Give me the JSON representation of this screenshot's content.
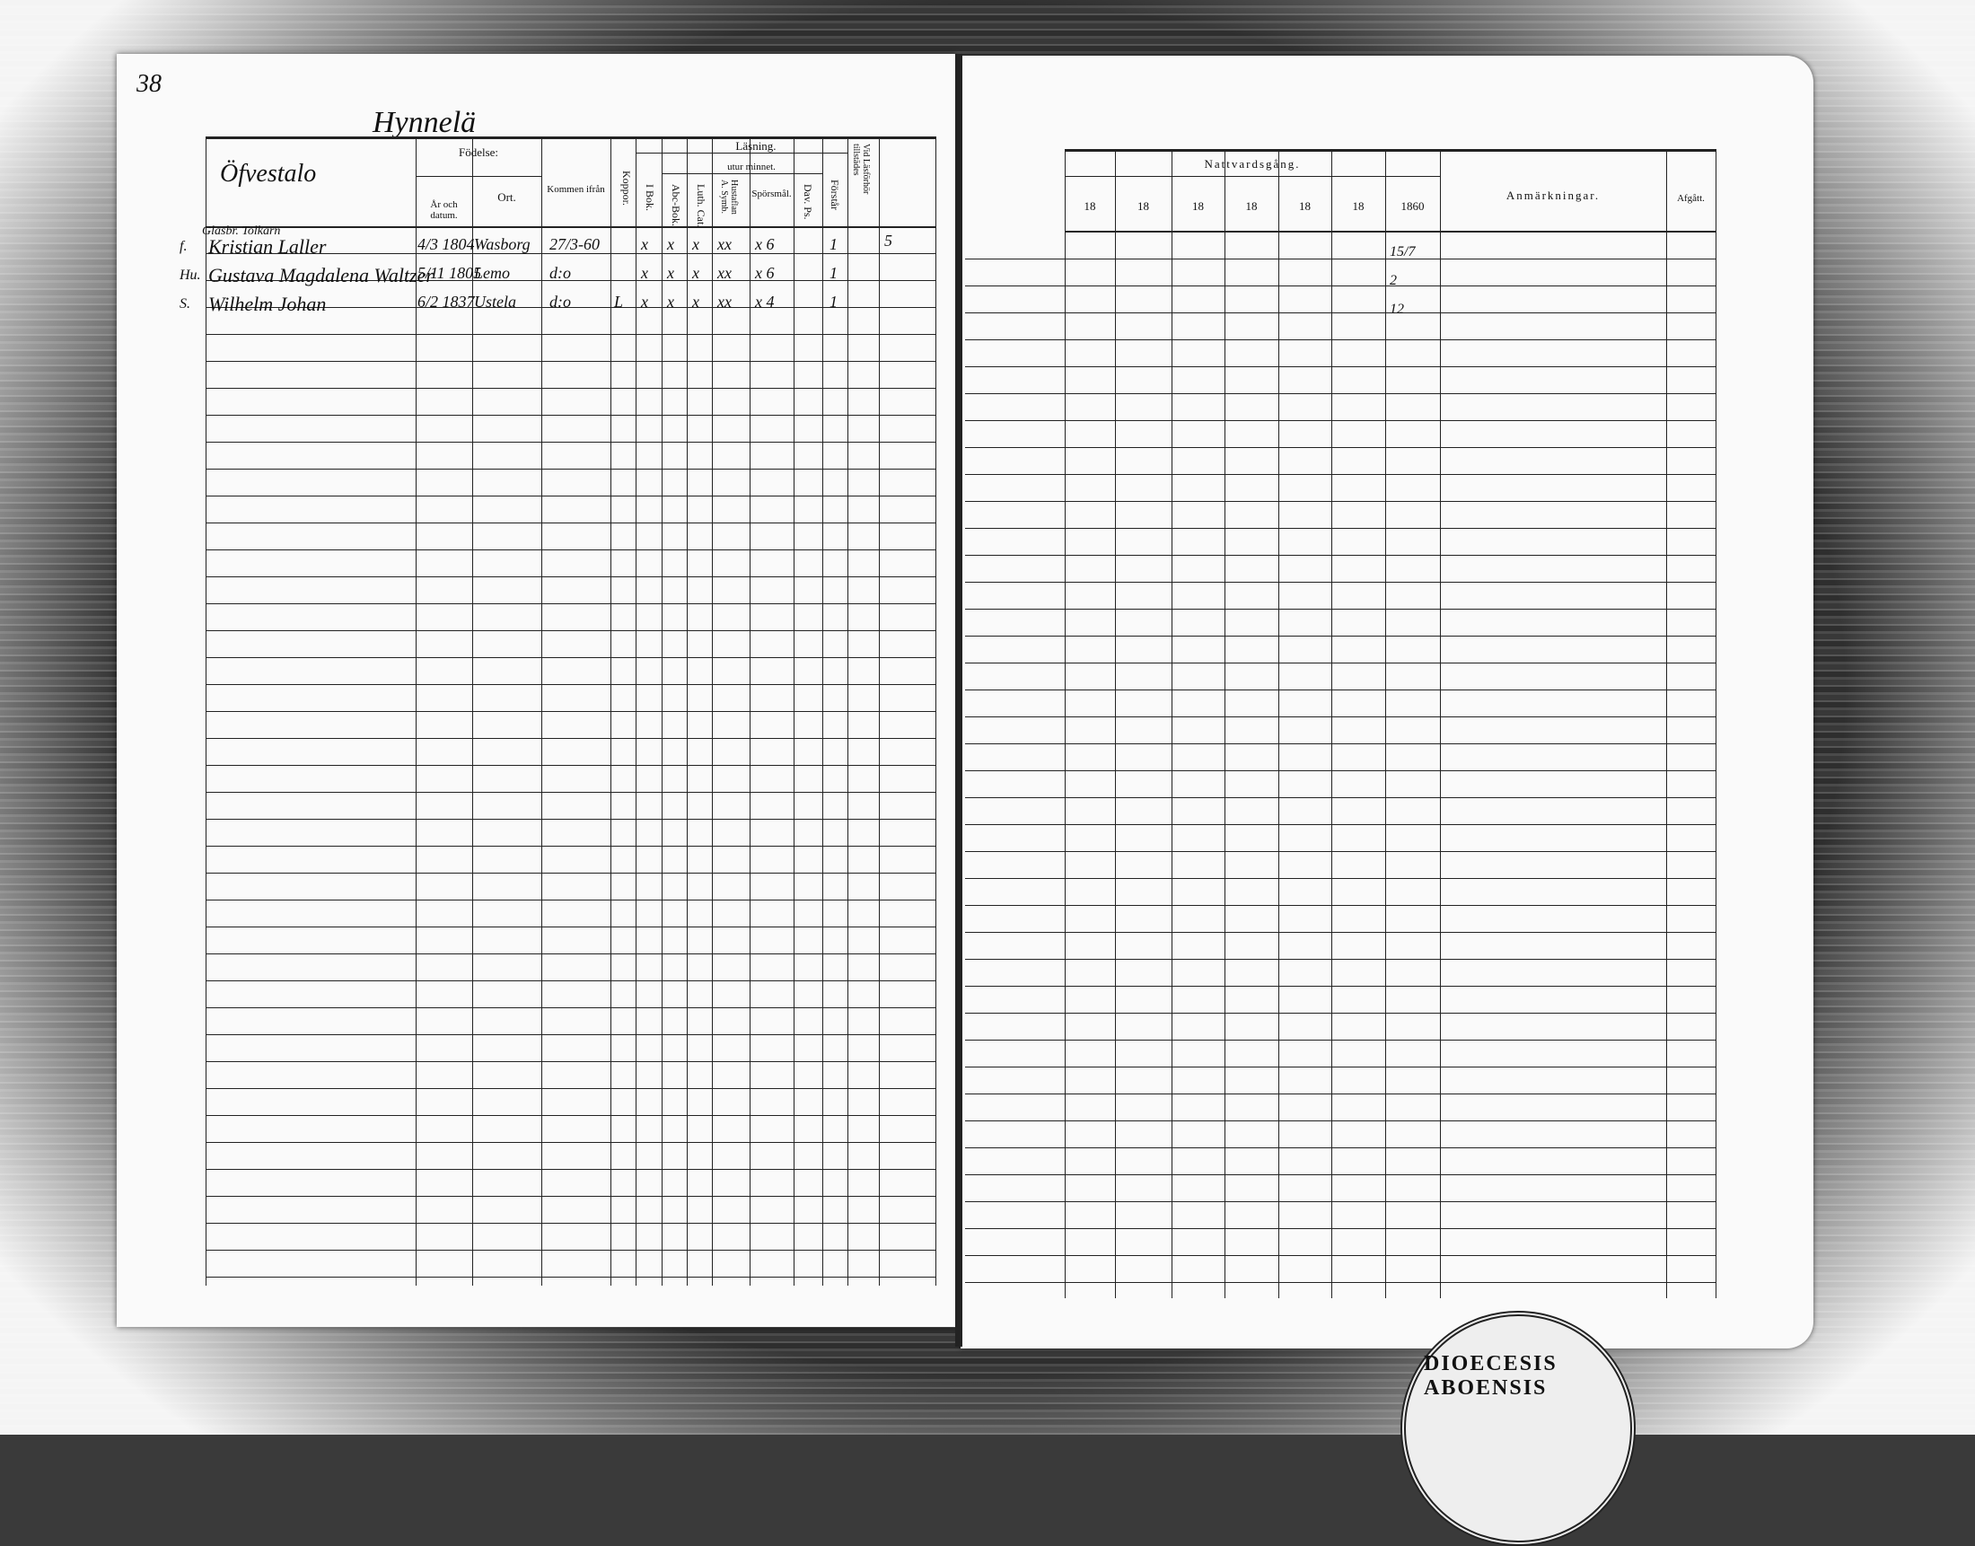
{
  "page_number": "38",
  "village": "Hynnelä",
  "farm": "Öfvestalo",
  "left_headers": {
    "birth": "Födelse:",
    "year_date": "År och datum.",
    "place": "Ort.",
    "came_from": "Kommen ifrån",
    "smallpox": "Koppor.",
    "reading": "Läsning.",
    "by_heart": "utur minnet.",
    "in_book": "I Bok.",
    "abc": "Abc-Bok.",
    "catechism": "Luth. Cat.",
    "household": "Hustaflan A. Symb.",
    "questions": "Spörsmål.",
    "psalms": "Dav. Ps.",
    "understands": "Förstår",
    "present": "Vid Läsförhör tillstädes"
  },
  "right_headers": {
    "communion": "Nattvardsgång.",
    "years": [
      "18",
      "18",
      "18",
      "18",
      "18",
      "18",
      "1860"
    ],
    "remarks": "Anmärkningar.",
    "departed": "Afgått."
  },
  "entries": [
    {
      "prefix": "f.",
      "note": "Glasbr. Tolkarn",
      "name": "Kristian Laller",
      "date": "4/3 1804",
      "place": "Wasborg",
      "came_from": "27/3-60",
      "smallpox": "",
      "marks": [
        "x",
        "x",
        "x",
        "xx",
        "x 6",
        ""
      ],
      "understands": "1",
      "side": "5",
      "communion": "15/7"
    },
    {
      "prefix": "Hu.",
      "note": "",
      "name": "Gustava Magdalena Waltzer",
      "date": "5/11 1805",
      "place": "Lemo",
      "came_from": "d:o",
      "smallpox": "",
      "marks": [
        "x",
        "x",
        "x",
        "xx",
        "x 6",
        ""
      ],
      "understands": "1",
      "side": "",
      "communion": "2"
    },
    {
      "prefix": "S.",
      "note": "",
      "name": "Wilhelm Johan",
      "date": "6/2 1837",
      "place": "Ustela",
      "came_from": "d:o",
      "smallpox": "L",
      "marks": [
        "x",
        "x",
        "x",
        "xx",
        "x 4",
        ""
      ],
      "understands": "1",
      "side": "",
      "communion": "12"
    }
  ],
  "stamp": "DIOECESIS ABOENSIS"
}
